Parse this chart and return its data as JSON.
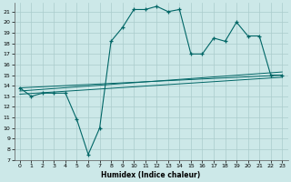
{
  "xlabel": "Humidex (Indice chaleur)",
  "bg_color": "#cce8e8",
  "line_color": "#006666",
  "grid_color": "#aacccc",
  "xlim": [
    -0.5,
    23.5
  ],
  "ylim": [
    7,
    21.8
  ],
  "yticks": [
    7,
    8,
    9,
    10,
    11,
    12,
    13,
    14,
    15,
    16,
    17,
    18,
    19,
    20,
    21
  ],
  "xticks": [
    0,
    1,
    2,
    3,
    4,
    5,
    6,
    7,
    8,
    9,
    10,
    11,
    12,
    13,
    14,
    15,
    16,
    17,
    18,
    19,
    20,
    21,
    22,
    23
  ],
  "line1_x": [
    0,
    1,
    2,
    3,
    4,
    5,
    6,
    7,
    8,
    9,
    10,
    11,
    12,
    13,
    14,
    15,
    16,
    17,
    18,
    19,
    20,
    21,
    22,
    23
  ],
  "line1_y": [
    13.8,
    13.0,
    13.3,
    13.3,
    13.3,
    10.8,
    7.5,
    10.0,
    18.2,
    19.5,
    21.2,
    21.2,
    21.5,
    21.0,
    21.2,
    17.0,
    17.0,
    18.5,
    18.2,
    20.0,
    18.7,
    18.7,
    15.0,
    15.0
  ],
  "line2_x": [
    0,
    23
  ],
  "line2_y": [
    13.8,
    15.0
  ],
  "line3_x": [
    0,
    23
  ],
  "line3_y": [
    13.5,
    15.3
  ],
  "line4_x": [
    0,
    23
  ],
  "line4_y": [
    13.2,
    14.8
  ]
}
